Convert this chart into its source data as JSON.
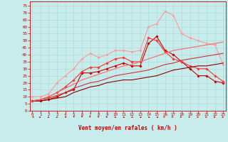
{
  "xlabel": "Vent moyen/en rafales ( km/h )",
  "background_color": "#c8ecec",
  "grid_color": "#a8d8d8",
  "x_ticks": [
    0,
    1,
    2,
    3,
    4,
    5,
    6,
    7,
    8,
    9,
    10,
    11,
    12,
    13,
    14,
    15,
    16,
    17,
    18,
    19,
    20,
    21,
    22,
    23
  ],
  "y_ticks": [
    0,
    5,
    10,
    15,
    20,
    25,
    30,
    35,
    40,
    45,
    50,
    55,
    60,
    65,
    70,
    75
  ],
  "xlim": [
    -0.3,
    23.3
  ],
  "ylim": [
    0,
    78
  ],
  "lines": [
    {
      "x": [
        0,
        1,
        2,
        3,
        4,
        5,
        6,
        7,
        8,
        9,
        10,
        11,
        12,
        13,
        14,
        15,
        16,
        17,
        18,
        19,
        20,
        21,
        22,
        23
      ],
      "y": [
        7,
        7,
        8,
        10,
        13,
        15,
        27,
        27,
        28,
        30,
        32,
        34,
        32,
        32,
        48,
        53,
        43,
        40,
        35,
        30,
        25,
        25,
        21,
        20
      ],
      "color": "#cc0000",
      "lw": 0.8,
      "marker": "D",
      "markersize": 1.8,
      "alpha": 1.0
    },
    {
      "x": [
        0,
        1,
        2,
        3,
        4,
        5,
        6,
        7,
        8,
        9,
        10,
        11,
        12,
        13,
        14,
        15,
        16,
        17,
        18,
        19,
        20,
        21,
        22,
        23
      ],
      "y": [
        7,
        8,
        10,
        13,
        17,
        22,
        28,
        31,
        31,
        34,
        37,
        38,
        35,
        35,
        52,
        50,
        42,
        37,
        35,
        32,
        30,
        30,
        25,
        21
      ],
      "color": "#ff3333",
      "lw": 0.8,
      "marker": "D",
      "markersize": 1.8,
      "alpha": 1.0
    },
    {
      "x": [
        0,
        1,
        2,
        3,
        4,
        5,
        6,
        7,
        8,
        9,
        10,
        11,
        12,
        13,
        14,
        15,
        16,
        17,
        18,
        19,
        20,
        21,
        22,
        23
      ],
      "y": [
        10,
        10,
        12,
        20,
        25,
        30,
        37,
        41,
        38,
        40,
        43,
        43,
        42,
        43,
        60,
        62,
        71,
        68,
        55,
        52,
        50,
        48,
        47,
        33
      ],
      "color": "#ff9999",
      "lw": 0.8,
      "marker": "o",
      "markersize": 1.8,
      "alpha": 1.0
    },
    {
      "x": [
        0,
        1,
        2,
        3,
        4,
        5,
        6,
        7,
        8,
        9,
        10,
        11,
        12,
        13,
        14,
        15,
        16,
        17,
        18,
        19,
        20,
        21,
        22,
        23
      ],
      "y": [
        7,
        7,
        8,
        9,
        10,
        13,
        15,
        17,
        18,
        20,
        21,
        22,
        22,
        23,
        24,
        25,
        27,
        29,
        30,
        31,
        32,
        32,
        33,
        34
      ],
      "color": "#880000",
      "lw": 0.8,
      "marker": null,
      "markersize": 0,
      "alpha": 1.0
    },
    {
      "x": [
        0,
        1,
        2,
        3,
        4,
        5,
        6,
        7,
        8,
        9,
        10,
        11,
        12,
        13,
        14,
        15,
        16,
        17,
        18,
        19,
        20,
        21,
        22,
        23
      ],
      "y": [
        7,
        8,
        9,
        11,
        13,
        16,
        18,
        20,
        21,
        23,
        25,
        26,
        27,
        28,
        29,
        31,
        33,
        34,
        36,
        37,
        38,
        39,
        40,
        41
      ],
      "color": "#cc3333",
      "lw": 0.8,
      "marker": null,
      "markersize": 0,
      "alpha": 1.0
    },
    {
      "x": [
        0,
        1,
        2,
        3,
        4,
        5,
        6,
        7,
        8,
        9,
        10,
        11,
        12,
        13,
        14,
        15,
        16,
        17,
        18,
        19,
        20,
        21,
        22,
        23
      ],
      "y": [
        7,
        8,
        10,
        13,
        16,
        19,
        22,
        24,
        26,
        28,
        30,
        32,
        33,
        35,
        37,
        39,
        41,
        43,
        44,
        45,
        46,
        47,
        48,
        49
      ],
      "color": "#ff6666",
      "lw": 0.8,
      "marker": null,
      "markersize": 0,
      "alpha": 1.0
    }
  ],
  "arrow_angles_deg": [
    225,
    215,
    210,
    200,
    195,
    185,
    180,
    175,
    170,
    165,
    160,
    155,
    150,
    145,
    145,
    140,
    135,
    135,
    130,
    125,
    120,
    115,
    110,
    110
  ]
}
